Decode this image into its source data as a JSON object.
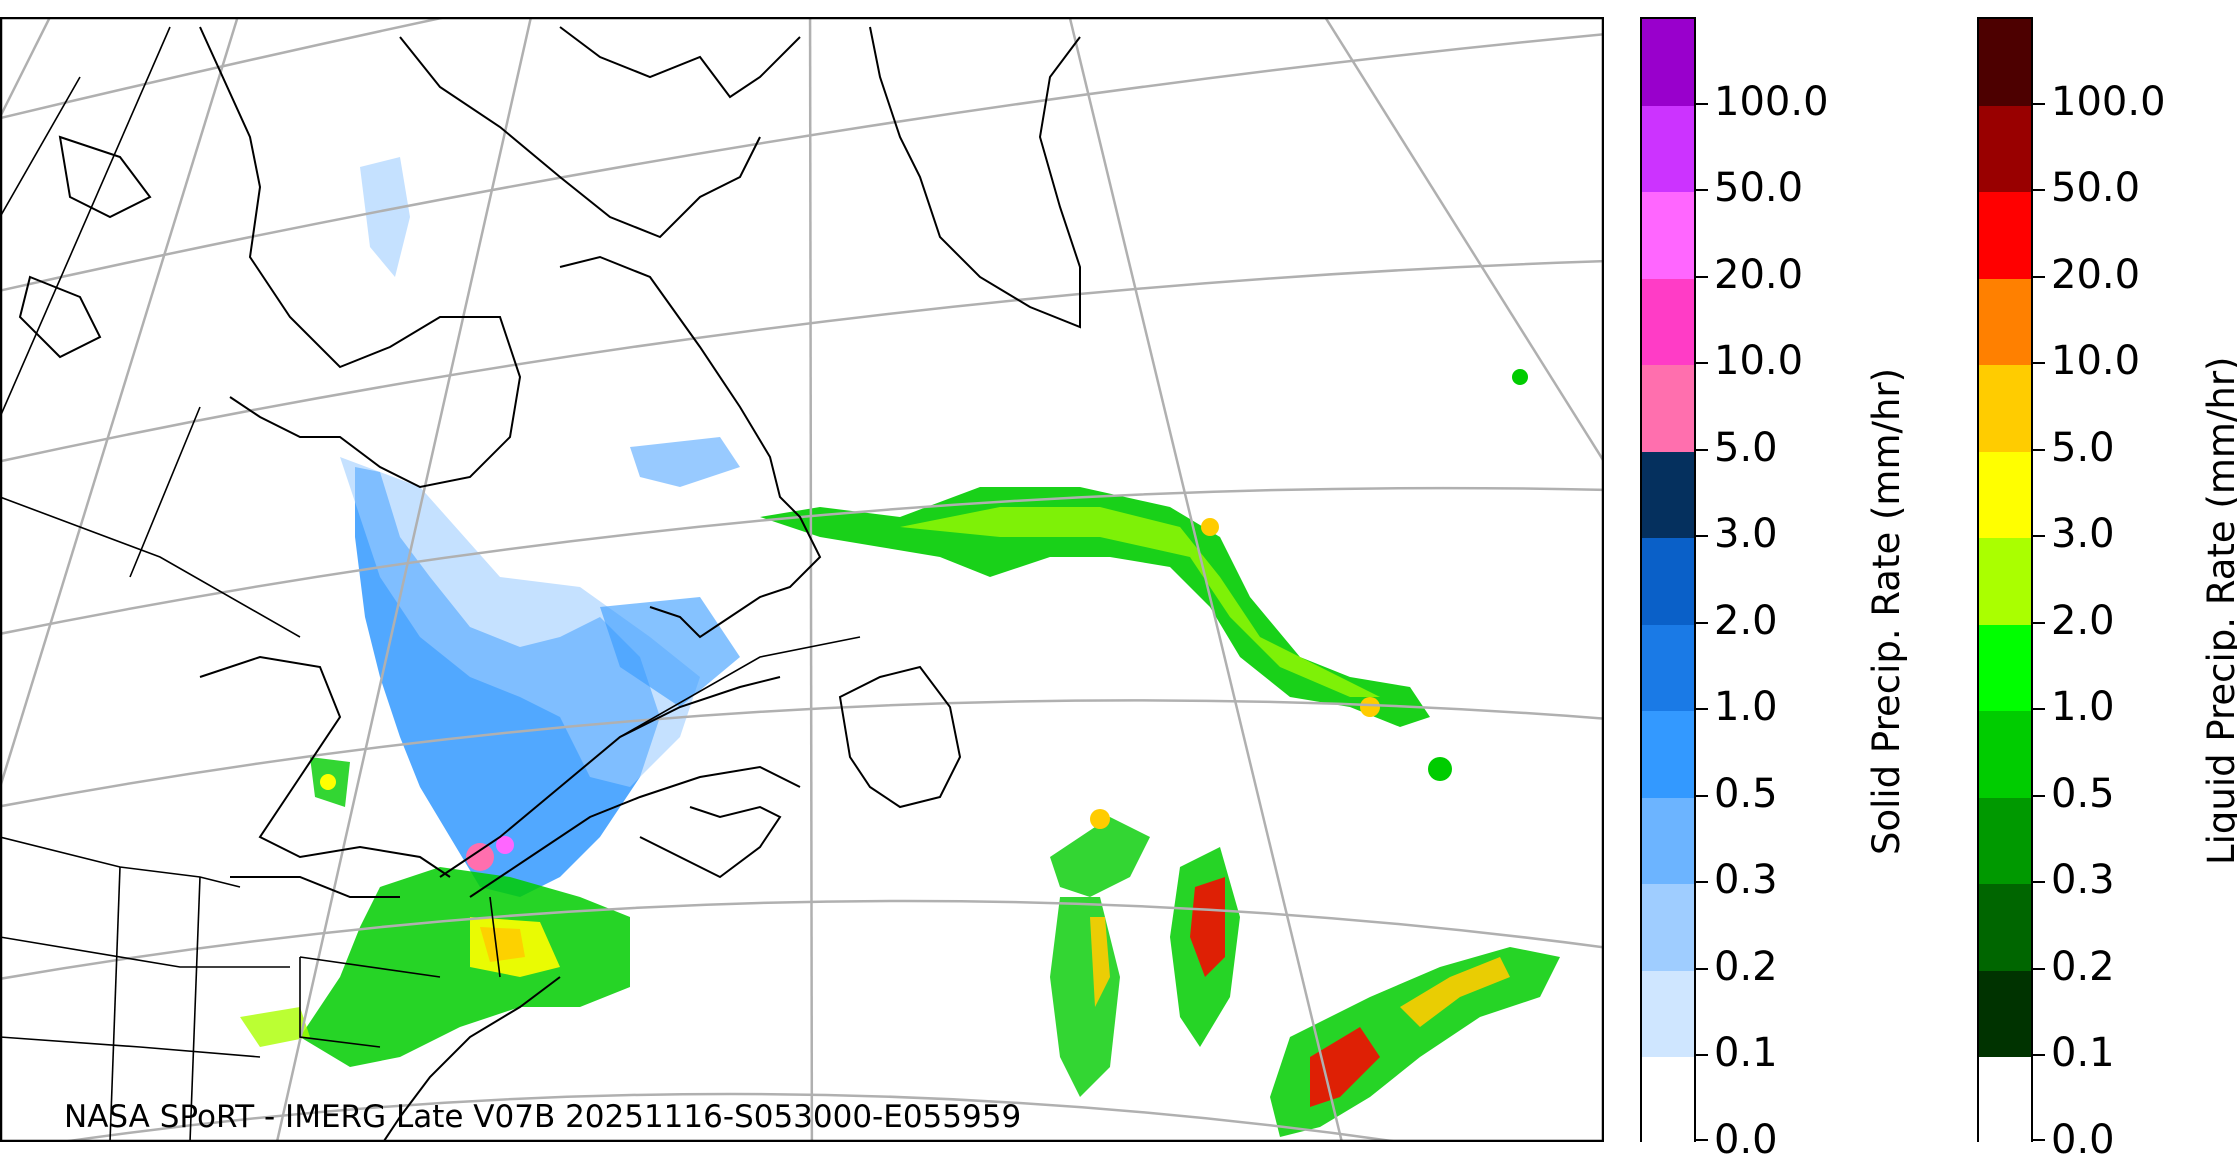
{
  "caption": "NASA SPoRT - IMERG Late V07B 20251116-S053000-E055959",
  "colorbars": {
    "solid": {
      "label": "Solid Precip. Rate (mm/hr)",
      "ticks": [
        "0.0",
        "0.1",
        "0.2",
        "0.3",
        "0.5",
        "1.0",
        "2.0",
        "3.0",
        "5.0",
        "10.0",
        "20.0",
        "50.0",
        "100.0"
      ],
      "colors": [
        "#ffffff",
        "#cfe6ff",
        "#9fcdff",
        "#6cb4ff",
        "#3399ff",
        "#1a7ae6",
        "#0a60c8",
        "#05305e",
        "#ff6fae",
        "#ff3cc6",
        "#ff66ff",
        "#cc33ff",
        "#9900cc"
      ]
    },
    "liquid": {
      "label": "Liquid Precip. Rate (mm/hr)",
      "ticks": [
        "0.0",
        "0.1",
        "0.2",
        "0.3",
        "0.5",
        "1.0",
        "2.0",
        "3.0",
        "5.0",
        "10.0",
        "20.0",
        "50.0",
        "100.0"
      ],
      "colors": [
        "#ffffff",
        "#003300",
        "#006600",
        "#009900",
        "#00cc00",
        "#00ff00",
        "#aaff00",
        "#ffff00",
        "#ffcc00",
        "#ff8000",
        "#ff0000",
        "#990000",
        "#4d0000"
      ]
    }
  },
  "map": {
    "region": "Northeastern North America and North Atlantic",
    "features": [
      "coastlines",
      "political-borders",
      "graticule",
      "precipitation-field"
    ]
  }
}
